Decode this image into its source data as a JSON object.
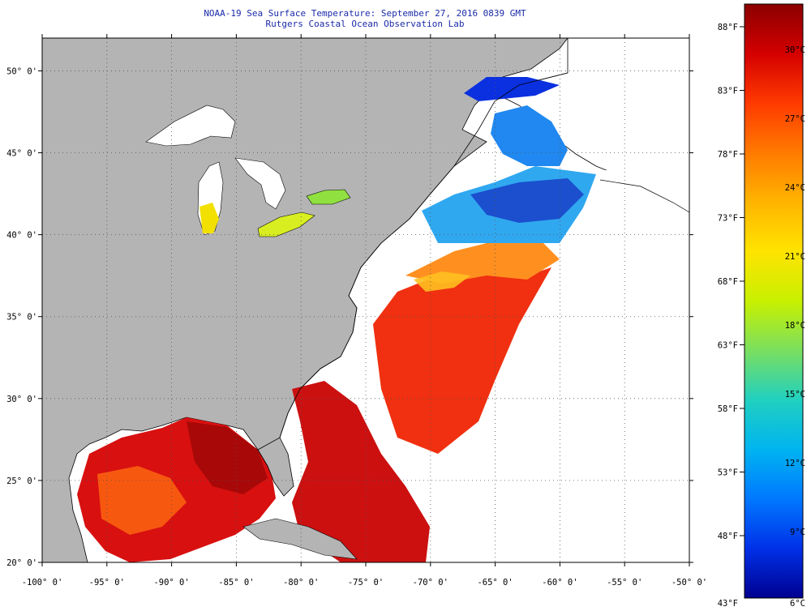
{
  "title": "NOAA-19 Sea Surface Temperature:  September 27, 2016 0839 GMT",
  "subtitle": "Rutgers Coastal Ocean Observation Lab",
  "map": {
    "lon_labels": [
      "-100° 0'",
      "-95° 0'",
      "-90° 0'",
      "-85° 0'",
      "-80° 0'",
      "-75° 0'",
      "-70° 0'",
      "-65° 0'",
      "-60° 0'",
      "-55° 0'",
      "-50° 0'"
    ],
    "lat_labels": [
      "50° 0'",
      "45° 0'",
      "40° 0'",
      "35° 0'",
      "30° 0'",
      "25° 0'",
      "20° 0'"
    ],
    "lon_range": [
      -100,
      -50
    ],
    "lat_range": [
      20,
      52
    ],
    "land_color": "#b4b4b4",
    "cloud_color": "#ffffff"
  },
  "colorbar": {
    "fahrenheit_labels": [
      "88°F",
      "83°F",
      "78°F",
      "73°F",
      "68°F",
      "63°F",
      "58°F",
      "53°F",
      "48°F",
      "43°F"
    ],
    "celsius_labels": [
      "30°C",
      "27°C",
      "24°C",
      "21°C",
      "18°C",
      "15°C",
      "12°C",
      "9°C",
      "6°C"
    ],
    "stops": [
      "#8b0000",
      "#d40000",
      "#ff3a00",
      "#ff7a00",
      "#ffb400",
      "#ffe400",
      "#c8f000",
      "#7adf60",
      "#20d0c0",
      "#00b4f0",
      "#0078ff",
      "#0030e8",
      "#000090"
    ]
  }
}
